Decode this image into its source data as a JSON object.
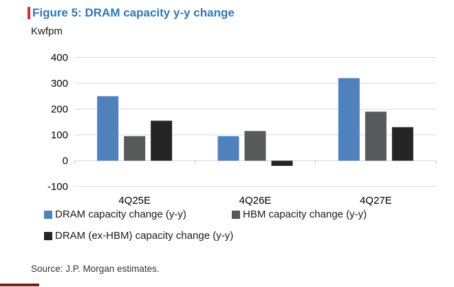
{
  "figure": {
    "title": "Figure 5: DRAM capacity y-y change",
    "title_color": "#2e77b5",
    "accent_bar_color": "#cc3333",
    "unit_label": "Kwfpm",
    "source": "Source: J.P. Morgan estimates.",
    "footer_bar_color": "#7b1e1e"
  },
  "chart_data": {
    "type": "bar",
    "title": "Figure 5: DRAM capacity y-y change",
    "ylabel": "Kwfpm",
    "xlabel": "",
    "categories": [
      "4Q25E",
      "4Q26E",
      "4Q27E"
    ],
    "series": [
      {
        "name": "DRAM capacity change (y-y)",
        "color": "#4f81bd",
        "values": [
          250,
          95,
          320
        ]
      },
      {
        "name": "HBM capacity change (y-y)",
        "color": "#58595b",
        "values": [
          95,
          115,
          190
        ]
      },
      {
        "name": "DRAM (ex-HBM) capacity change (y-y)",
        "color": "#252525",
        "values": [
          155,
          -20,
          130
        ]
      }
    ],
    "ylim": [
      -100,
      400
    ],
    "yticks": [
      400,
      300,
      200,
      100,
      0,
      -100
    ],
    "grid": true,
    "gridline_color": "#d9d9d9",
    "tick_color": "#bfbfbf",
    "axis_text_color": "#000000",
    "legend_position": "bottom"
  }
}
